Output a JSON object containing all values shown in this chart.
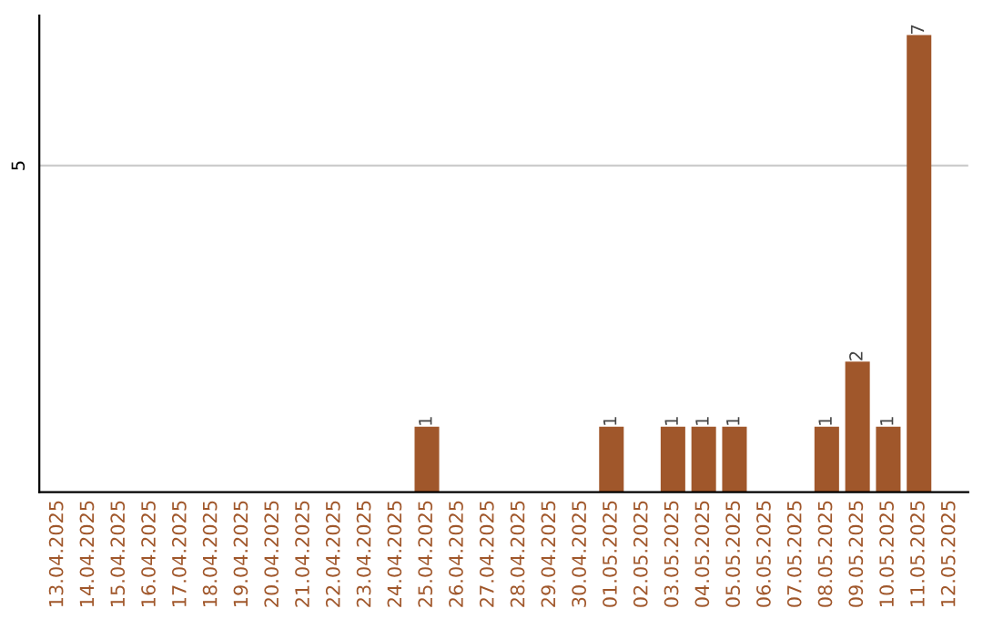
{
  "chart_data": {
    "type": "bar",
    "categories": [
      "13.04.2025",
      "14.04.2025",
      "15.04.2025",
      "16.04.2025",
      "17.04.2025",
      "18.04.2025",
      "19.04.2025",
      "20.04.2025",
      "21.04.2025",
      "22.04.2025",
      "23.04.2025",
      "24.04.2025",
      "25.04.2025",
      "26.04.2025",
      "27.04.2025",
      "28.04.2025",
      "29.04.2025",
      "30.04.2025",
      "01.05.2025",
      "02.05.2025",
      "03.05.2025",
      "04.05.2025",
      "05.05.2025",
      "06.05.2025",
      "07.05.2025",
      "08.05.2025",
      "09.05.2025",
      "10.05.2025",
      "11.05.2025",
      "12.05.2025"
    ],
    "values": [
      null,
      null,
      null,
      null,
      null,
      null,
      null,
      null,
      null,
      null,
      null,
      null,
      1,
      null,
      null,
      null,
      null,
      null,
      1,
      null,
      1,
      1,
      1,
      null,
      null,
      1,
      2,
      1,
      7,
      null
    ],
    "value_labels": [
      null,
      null,
      null,
      null,
      null,
      null,
      null,
      null,
      null,
      null,
      null,
      null,
      "1",
      null,
      null,
      null,
      null,
      null,
      "1",
      null,
      "1",
      "1",
      "1",
      null,
      null,
      "1",
      "2",
      "1",
      "7",
      null
    ],
    "color": "#a0572b",
    "ylim": [
      0,
      7.3
    ],
    "ref_lines": [
      {
        "axis": "y",
        "value": 5,
        "label": "5",
        "color": "#cccccc"
      }
    ]
  }
}
